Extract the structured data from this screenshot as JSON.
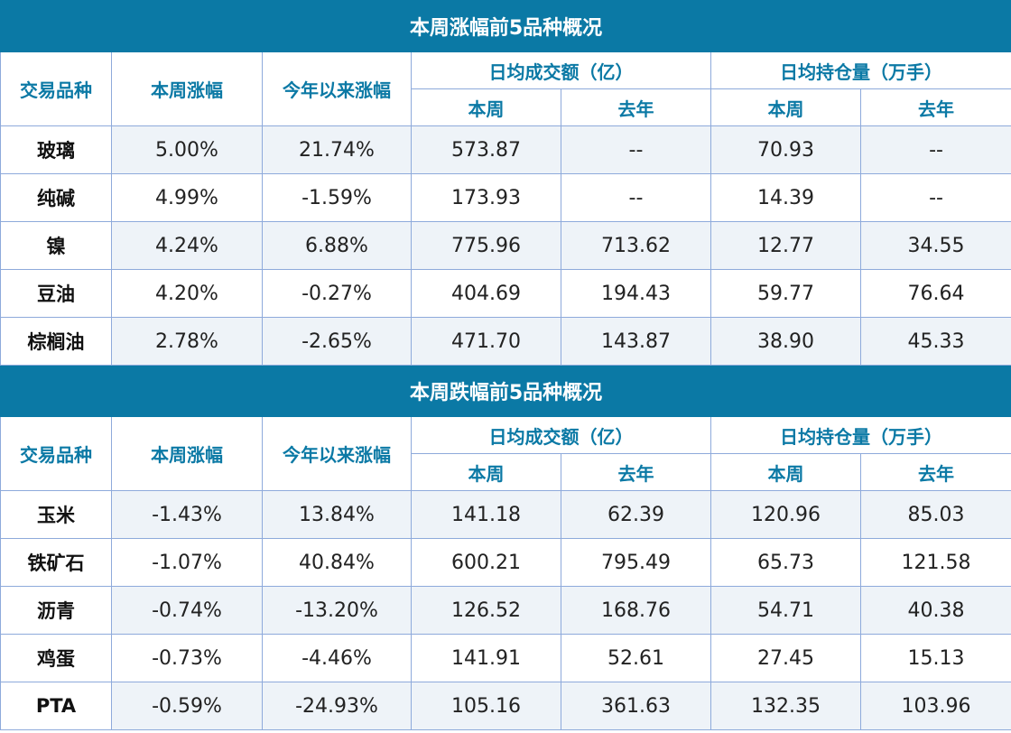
{
  "columns": {
    "variety": "交易品种",
    "week_change": "本周涨幅",
    "ytd_change": "今年以来涨幅",
    "avg_turnover": "日均成交额（亿）",
    "avg_open_interest": "日均持仓量（万手）",
    "this_week": "本周",
    "last_year": "去年"
  },
  "gainers": {
    "title": "本周涨幅前5品种概况",
    "rows": [
      {
        "name": "玻璃",
        "week": "5.00%",
        "ytd": "21.74%",
        "turnover_week": "573.87",
        "turnover_last": "--",
        "oi_week": "70.93",
        "oi_last": "--"
      },
      {
        "name": "纯碱",
        "week": "4.99%",
        "ytd": "-1.59%",
        "turnover_week": "173.93",
        "turnover_last": "--",
        "oi_week": "14.39",
        "oi_last": "--"
      },
      {
        "name": "镍",
        "week": "4.24%",
        "ytd": "6.88%",
        "turnover_week": "775.96",
        "turnover_last": "713.62",
        "oi_week": "12.77",
        "oi_last": "34.55"
      },
      {
        "name": "豆油",
        "week": "4.20%",
        "ytd": "-0.27%",
        "turnover_week": "404.69",
        "turnover_last": "194.43",
        "oi_week": "59.77",
        "oi_last": "76.64"
      },
      {
        "name": "棕榈油",
        "week": "2.78%",
        "ytd": "-2.65%",
        "turnover_week": "471.70",
        "turnover_last": "143.87",
        "oi_week": "38.90",
        "oi_last": "45.33"
      }
    ]
  },
  "losers": {
    "title": "本周跌幅前5品种概况",
    "rows": [
      {
        "name": "玉米",
        "week": "-1.43%",
        "ytd": "13.84%",
        "turnover_week": "141.18",
        "turnover_last": "62.39",
        "oi_week": "120.96",
        "oi_last": "85.03"
      },
      {
        "name": "铁矿石",
        "week": "-1.07%",
        "ytd": "40.84%",
        "turnover_week": "600.21",
        "turnover_last": "795.49",
        "oi_week": "65.73",
        "oi_last": "121.58"
      },
      {
        "name": "沥青",
        "week": "-0.74%",
        "ytd": "-13.20%",
        "turnover_week": "126.52",
        "turnover_last": "168.76",
        "oi_week": "54.71",
        "oi_last": "40.38"
      },
      {
        "name": "鸡蛋",
        "week": "-0.73%",
        "ytd": "-4.46%",
        "turnover_week": "141.91",
        "turnover_last": "52.61",
        "oi_week": "27.45",
        "oi_last": "15.13"
      },
      {
        "name": "PTA",
        "week": "-0.59%",
        "ytd": "-24.93%",
        "turnover_week": "105.16",
        "turnover_last": "361.63",
        "oi_week": "132.35",
        "oi_last": "103.96"
      }
    ]
  }
}
